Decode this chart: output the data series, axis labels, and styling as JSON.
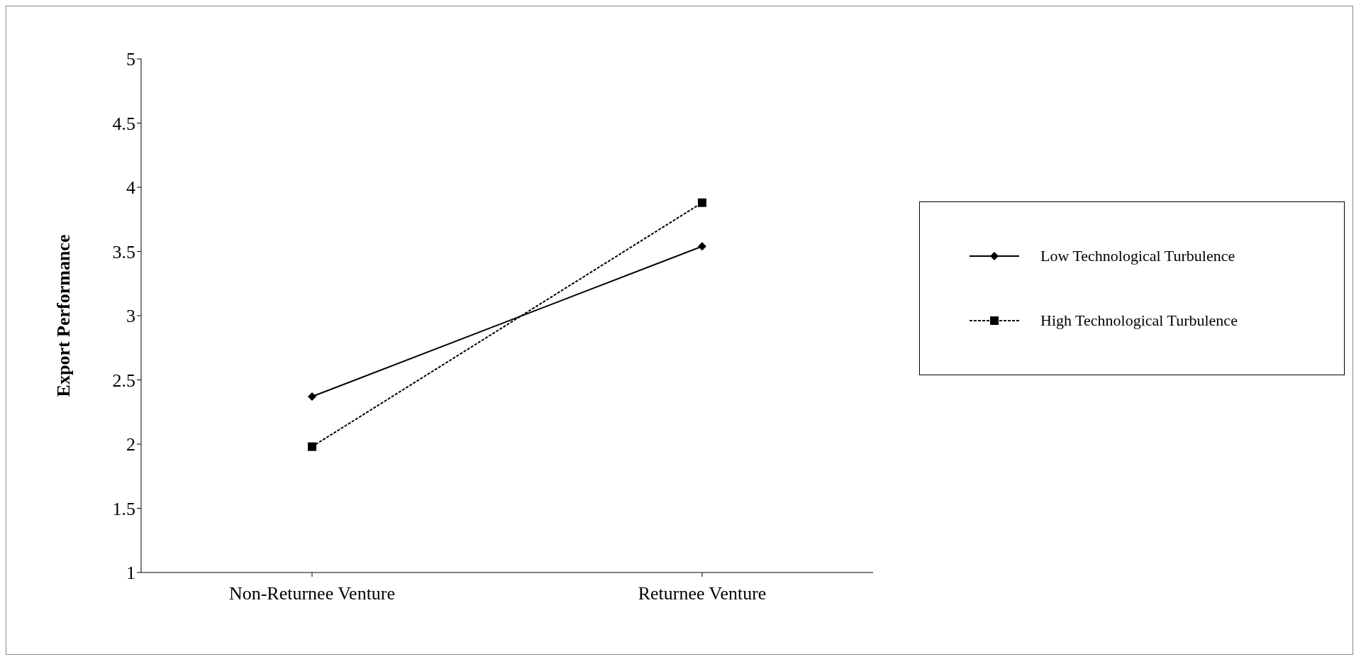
{
  "chart_data": {
    "type": "line",
    "ylabel": "Export Performance",
    "categories": [
      "Non-Returnee Venture",
      "Returnee Venture"
    ],
    "series": [
      {
        "name": "Low Technological Turbulence",
        "color": "#000000",
        "values": [
          2.37,
          3.54
        ],
        "marker": "diamond",
        "line_style": "solid"
      },
      {
        "name": "High Technological Turbulence",
        "color": "#000000",
        "values": [
          1.98,
          3.88
        ],
        "marker": "square",
        "line_style": "dashed"
      }
    ],
    "ylim": [
      1,
      5
    ],
    "yticks": [
      1,
      1.5,
      2,
      2.5,
      3,
      3.5,
      4,
      4.5,
      5
    ],
    "grid": false,
    "legend": "right"
  }
}
